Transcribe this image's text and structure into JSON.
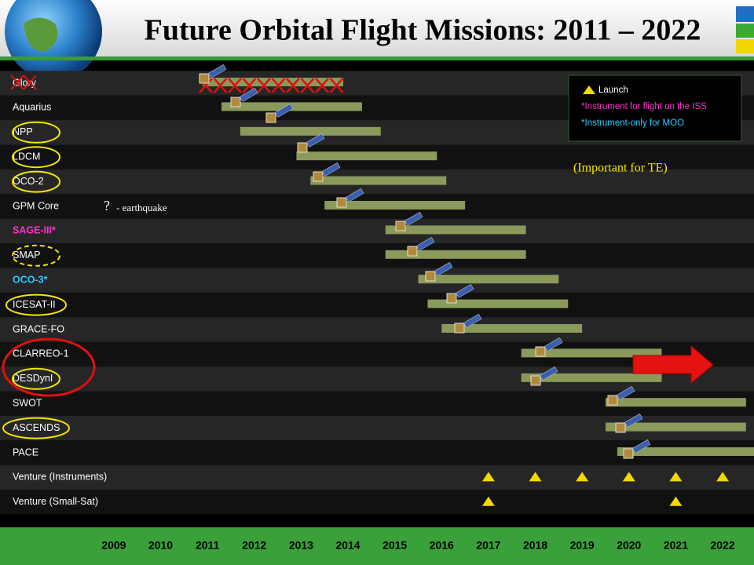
{
  "chart_data": {
    "type": "gantt",
    "title": "Future Orbital Flight Missions: 2011 – 2022",
    "categories": [
      "Glory",
      "Aquarius",
      "NPP",
      "LDCM",
      "OCO-2",
      "GPM Core",
      "SAGE-III*",
      "SMAP",
      "OCO-3*",
      "ICESAT-II",
      "GRACE-FO",
      "CLARREO-1",
      "DESDynI",
      "SWOT",
      "ASCENDS",
      "PACE",
      "Venture (Instruments)",
      "Venture (Small-Sat)"
    ],
    "label_colors": [
      "#ffffff",
      "#ffffff",
      "#ffffff",
      "#ffffff",
      "#ffffff",
      "#ffffff",
      "#ff33cc",
      "#ffffff",
      "#33ccff",
      "#ffffff",
      "#ffffff",
      "#ffffff",
      "#ffffff",
      "#ffffff",
      "#ffffff",
      "#ffffff",
      "#ffffff",
      "#ffffff"
    ],
    "start": [
      2010.9,
      2011.3,
      2011.7,
      2012.9,
      2013.2,
      2013.5,
      2014.8,
      2014.8,
      2015.5,
      2015.7,
      2016.0,
      2017.7,
      2017.7,
      2019.5,
      2019.5,
      2019.75,
      null,
      null
    ],
    "end": [
      2013.9,
      2014.3,
      2014.7,
      2015.9,
      2016.1,
      2016.5,
      2017.8,
      2017.8,
      2018.5,
      2018.7,
      2019.0,
      2020.7,
      2020.7,
      2022.5,
      2022.5,
      2022.7,
      null,
      null
    ],
    "launches": [
      null,
      null,
      null,
      null,
      null,
      null,
      null,
      null,
      null,
      null,
      null,
      null,
      null,
      null,
      null,
      null,
      [
        2017,
        2018,
        2019,
        2020,
        2021,
        2022
      ],
      [
        2017,
        2021
      ]
    ],
    "bar_color": "#8a9a5b",
    "launch_color": "#f5d800",
    "xlim": [
      2006.57,
      2022.67
    ],
    "xticks": [
      2009,
      2010,
      2011,
      2012,
      2013,
      2014,
      2015,
      2016,
      2017,
      2018,
      2019,
      2020,
      2021,
      2022
    ],
    "grid": true,
    "legend": [
      {
        "text": "Launch",
        "color": "#ffffff"
      },
      {
        "text": "*Instrument for flight on the ISS",
        "color": "#ff33cc"
      },
      {
        "text": "*Instrument-only for MOO",
        "color": "#33ccff"
      }
    ],
    "annotations": [
      "(Important for TE)",
      "?",
      "- earthquake"
    ]
  }
}
